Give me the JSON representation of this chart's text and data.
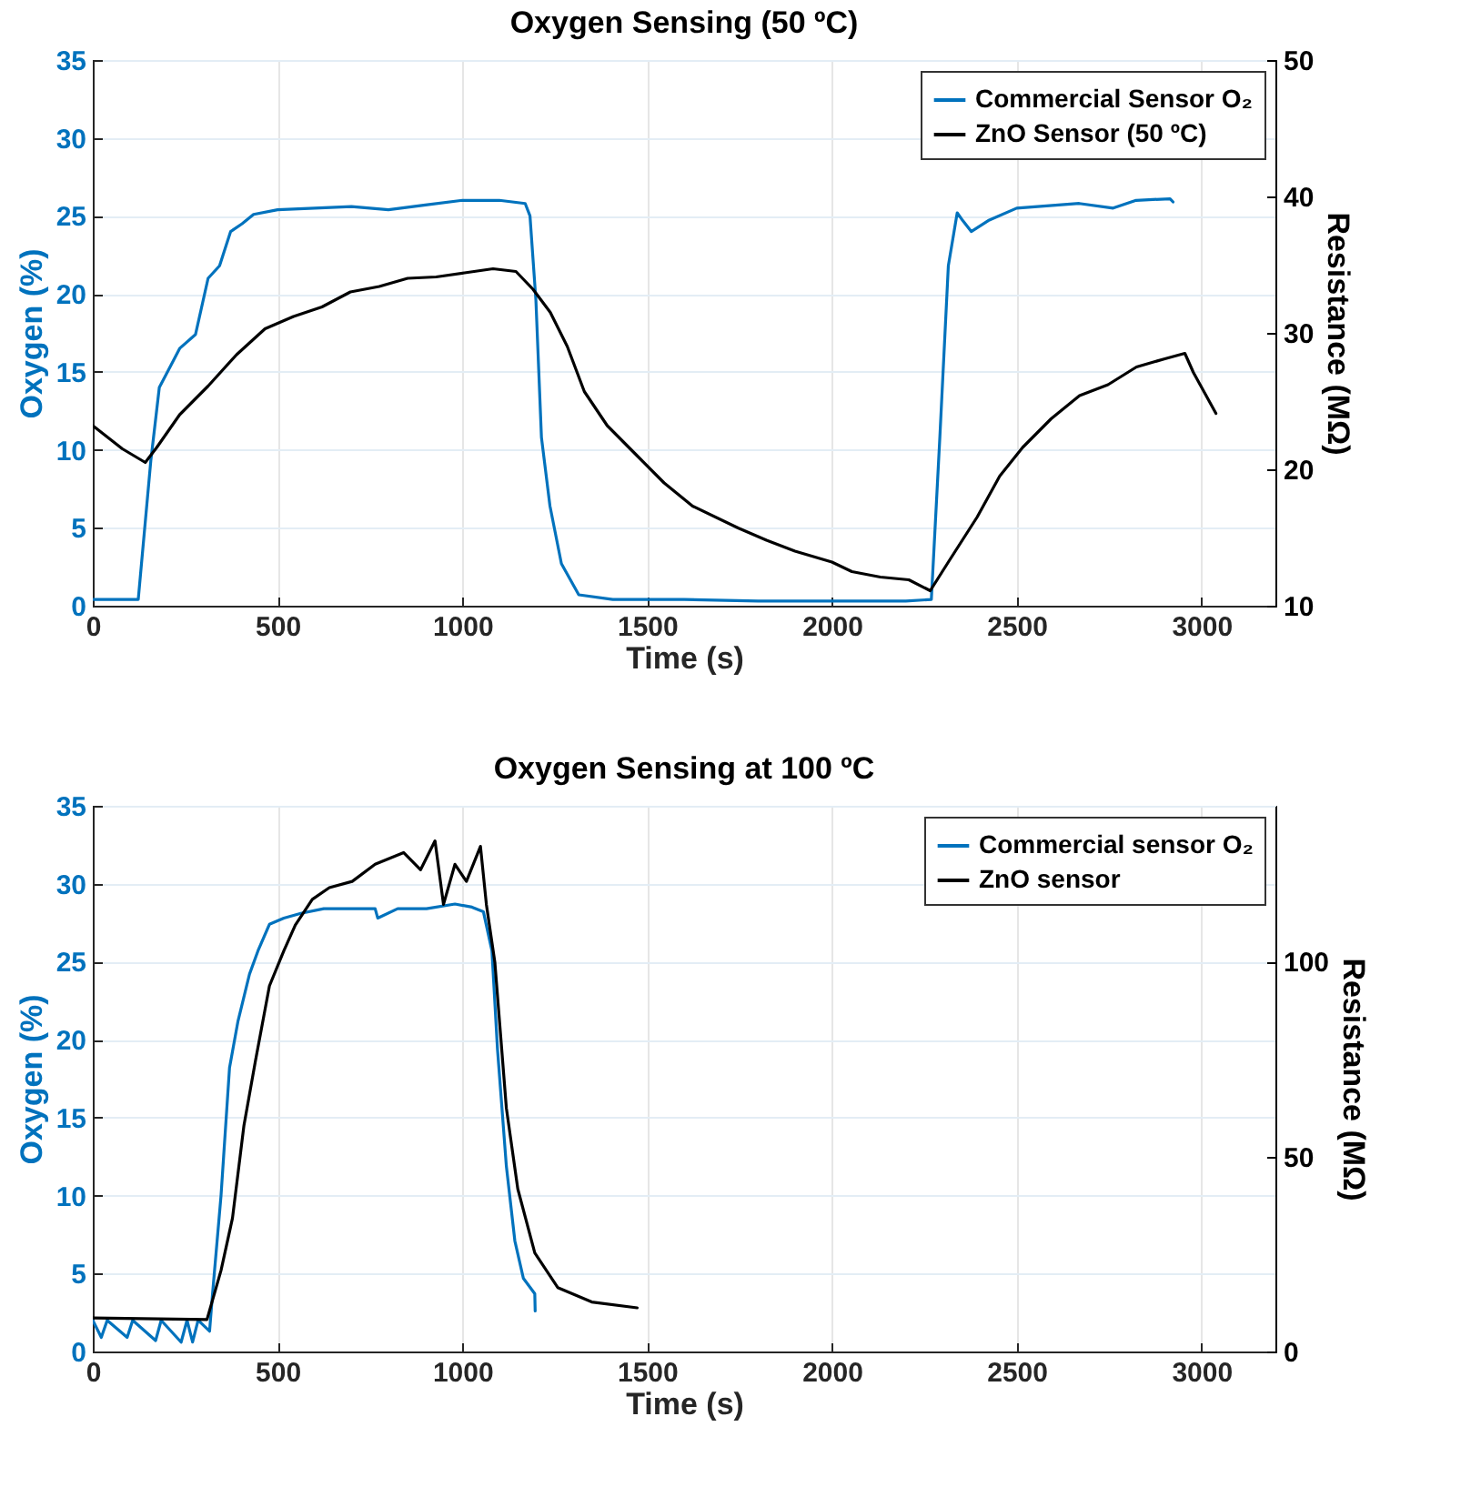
{
  "chart_data": [
    {
      "type": "line",
      "title": "Oxygen Sensing (50 ºC)",
      "xlabel": "Time (s)",
      "ylabel": "Oxygen (%)",
      "y2label": "Resistance (MΩ)",
      "xlim": [
        0,
        3200
      ],
      "xticks": [
        0,
        500,
        1000,
        1500,
        2000,
        2500,
        3000
      ],
      "ylim": [
        0,
        35
      ],
      "yticks": [
        0,
        5,
        10,
        15,
        20,
        25,
        30,
        35
      ],
      "y2lim": [
        10,
        50
      ],
      "y2ticks": [
        10,
        20,
        30,
        40,
        50
      ],
      "grid": true,
      "legend": "top right",
      "series": [
        {
          "name": "Commercial Sensor O₂",
          "color": "#0072bd",
          "axis": "y",
          "x": [
            0,
            60,
            123,
            157,
            180,
            211,
            235,
            278,
            312,
            343,
            373,
            404,
            435,
            500,
            600,
            700,
            800,
            900,
            1000,
            1100,
            1170,
            1183,
            1199,
            1214,
            1237,
            1268,
            1315,
            1407,
            1600,
            1800,
            2000,
            2200,
            2269,
            2292,
            2315,
            2339,
            2354,
            2377,
            2423,
            2500,
            2669,
            2761,
            2823,
            2915,
            2923
          ],
          "values": [
            0.4,
            0.4,
            0.4,
            9.3,
            14,
            15.4,
            16.5,
            17.4,
            21,
            21.8,
            24,
            24.5,
            25.1,
            25.4,
            25.5,
            25.6,
            25.4,
            25.7,
            26,
            26,
            25.8,
            25,
            19.6,
            10.8,
            6.4,
            2.7,
            0.7,
            0.4,
            0.4,
            0.3,
            0.3,
            0.3,
            0.4,
            10.8,
            21.8,
            25.2,
            24.7,
            24,
            24.7,
            25.5,
            25.8,
            25.5,
            26,
            26.1,
            25.9
          ]
        },
        {
          "name": "ZnO Sensor (50 ºC)",
          "color": "#000000",
          "axis": "y2",
          "x": [
            0,
            80,
            142,
            173,
            235,
            312,
            389,
            466,
            543,
            620,
            697,
            775,
            852,
            929,
            1006,
            1083,
            1145,
            1191,
            1238,
            1284,
            1330,
            1392,
            1469,
            1546,
            1623,
            1746,
            1823,
            1900,
            2000,
            2054,
            2131,
            2208,
            2266,
            2315,
            2393,
            2454,
            2516,
            2593,
            2670,
            2747,
            2824,
            2901,
            2955,
            2978,
            3039
          ],
          "values": [
            23.2,
            21.5,
            20.5,
            21.6,
            24,
            26.1,
            28.4,
            30.3,
            31.2,
            31.9,
            33,
            33.4,
            34,
            34.1,
            34.4,
            34.7,
            34.5,
            33.2,
            31.5,
            29,
            25.7,
            23.2,
            21.1,
            19,
            17.3,
            15.7,
            14.8,
            14,
            13.2,
            12.5,
            12.1,
            11.9,
            11.1,
            13.2,
            16.5,
            19.5,
            21.6,
            23.7,
            25.4,
            26.2,
            27.5,
            28.1,
            28.5,
            27.1,
            24.1
          ]
        }
      ]
    },
    {
      "type": "line",
      "title": "Oxygen Sensing at 100 ºC",
      "xlabel": "Time (s)",
      "ylabel": "Oxygen (%)",
      "y2label": "Resistance (MΩ)",
      "xlim": [
        0,
        3200
      ],
      "xticks": [
        0,
        500,
        1000,
        1500,
        2000,
        2500,
        3000
      ],
      "ylim": [
        0,
        35
      ],
      "yticks": [
        0,
        5,
        10,
        15,
        20,
        25,
        30,
        35
      ],
      "y2lim": [
        0,
        140
      ],
      "y2ticks": [
        0,
        50,
        100
      ],
      "grid": true,
      "legend": "top right",
      "series": [
        {
          "name": "Commercial sensor O₂",
          "color": "#0072bd",
          "axis": "y",
          "x": [
            0,
            23,
            39,
            93,
            108,
            170,
            185,
            239,
            255,
            270,
            285,
            316,
            324,
            347,
            370,
            393,
            424,
            447,
            478,
            517,
            563,
            625,
            764,
            771,
            825,
            903,
            980,
            1026,
            1057,
            1080,
            1095,
            1119,
            1142,
            1165,
            1196,
            1197
          ],
          "values": [
            2.0,
            0.9,
            2.0,
            0.9,
            2.0,
            0.7,
            2.0,
            0.6,
            2.0,
            0.6,
            2.0,
            1.3,
            3.7,
            10,
            18.2,
            21.2,
            24.2,
            25.7,
            27.4,
            27.8,
            28.1,
            28.4,
            28.4,
            27.8,
            28.4,
            28.4,
            28.7,
            28.5,
            28.2,
            25.7,
            19.4,
            11.9,
            7.1,
            4.7,
            3.7,
            2.6
          ]
        },
        {
          "name": "ZnO sensor",
          "color": "#000000",
          "axis": "y2",
          "x": [
            0,
            309,
            347,
            378,
            409,
            440,
            478,
            517,
            548,
            594,
            640,
            702,
            764,
            841,
            887,
            926,
            949,
            980,
            1011,
            1049,
            1065,
            1088,
            1119,
            1150,
            1196,
            1258,
            1350,
            1473
          ],
          "values": [
            8.6,
            8.2,
            20.8,
            34.2,
            58,
            74.5,
            93.8,
            102.8,
            109.4,
            116,
            119,
            120.6,
            125,
            128,
            123.6,
            131,
            114.7,
            125,
            120.6,
            129.6,
            114.7,
            99.8,
            62.5,
            41.7,
            25.3,
            16.4,
            12.7,
            11.2
          ]
        }
      ]
    }
  ]
}
